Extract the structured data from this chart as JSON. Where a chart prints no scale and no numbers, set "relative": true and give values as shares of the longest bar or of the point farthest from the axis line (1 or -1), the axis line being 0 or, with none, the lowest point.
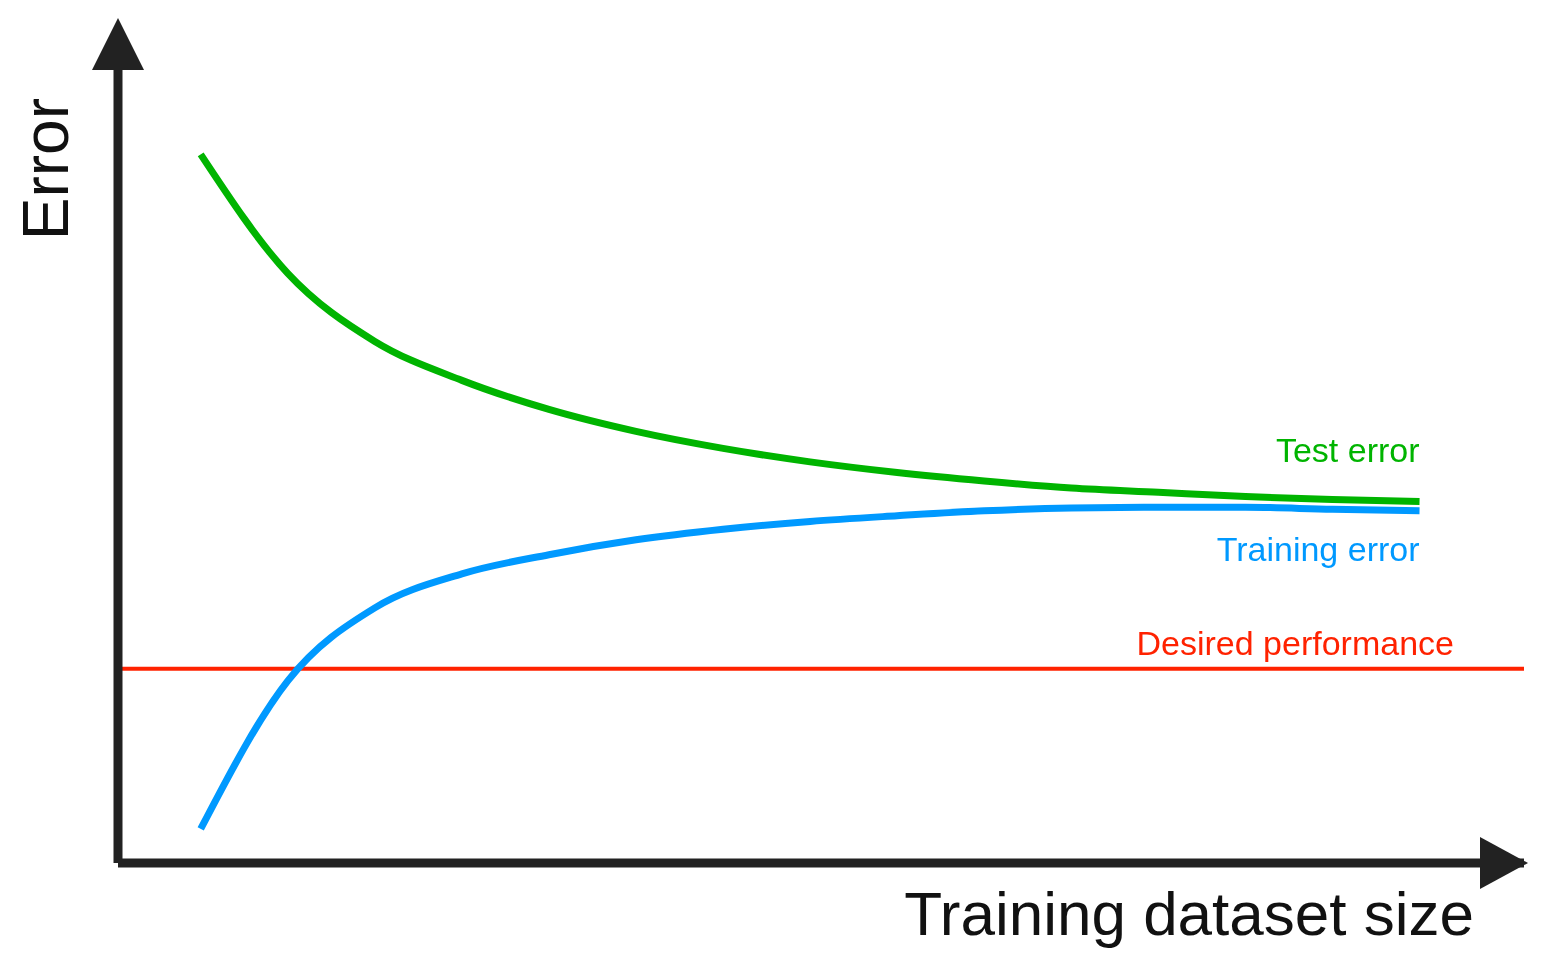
{
  "chart_data": {
    "type": "line",
    "relative": true,
    "xlabel": "Training dataset size",
    "ylabel": "Error",
    "categories": [
      null,
      null,
      null,
      null,
      null,
      null,
      null,
      null,
      null,
      null,
      null,
      null,
      null,
      null,
      null
    ],
    "series": [
      {
        "name": "Test error",
        "color": "#00b400",
        "values": [
          1.0,
          0.832,
          0.736,
          0.681,
          0.64,
          0.609,
          0.585,
          0.566,
          0.551,
          0.539,
          0.529,
          0.523,
          0.517,
          0.513,
          0.51
        ]
      },
      {
        "name": "Training error",
        "color": "#0099ff",
        "values": [
          0.048,
          0.257,
          0.36,
          0.408,
          0.435,
          0.456,
          0.471,
          0.482,
          0.49,
          0.497,
          0.501,
          0.502,
          0.502,
          0.499,
          0.497
        ]
      }
    ],
    "ref_lines": [
      {
        "axis": "y",
        "value": 0.274,
        "label": "Desired performance",
        "color": "#ff2200",
        "line_style": "solid"
      }
    ],
    "grid": false,
    "legend": false,
    "marker": "none",
    "line_style": "solid"
  }
}
